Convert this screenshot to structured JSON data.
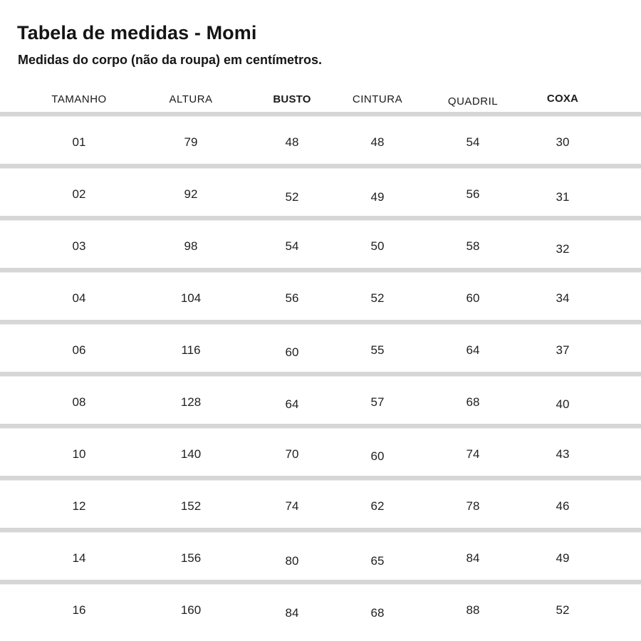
{
  "page": {
    "title": "Tabela de medidas - Momi",
    "subtitle": "Medidas do corpo (não da roupa) em centímetros."
  },
  "table": {
    "columns": [
      "TAMANHO",
      "ALTURA",
      "BUSTO",
      "CINTURA",
      "QUADRIL",
      "COXA"
    ],
    "rows": [
      [
        "01",
        "79",
        "48",
        "48",
        "54",
        "30"
      ],
      [
        "02",
        "92",
        "52",
        "49",
        "56",
        "31"
      ],
      [
        "03",
        "98",
        "54",
        "50",
        "58",
        "32"
      ],
      [
        "04",
        "104",
        "56",
        "52",
        "60",
        "34"
      ],
      [
        "06",
        "116",
        "60",
        "55",
        "64",
        "37"
      ],
      [
        "08",
        "128",
        "64",
        "57",
        "68",
        "40"
      ],
      [
        "10",
        "140",
        "70",
        "60",
        "74",
        "43"
      ],
      [
        "12",
        "152",
        "74",
        "62",
        "78",
        "46"
      ],
      [
        "14",
        "156",
        "80",
        "65",
        "84",
        "49"
      ],
      [
        "16",
        "160",
        "84",
        "68",
        "88",
        "52"
      ]
    ],
    "units": "centímetros"
  },
  "chart_data": {
    "type": "table",
    "title": "Tabela de medidas - Momi",
    "subtitle": "Medidas do corpo (não da roupa) em centímetros.",
    "columns": [
      "TAMANHO",
      "ALTURA",
      "BUSTO",
      "CINTURA",
      "QUADRIL",
      "COXA"
    ],
    "rows": [
      [
        "01",
        "79",
        "48",
        "48",
        "54",
        "30"
      ],
      [
        "02",
        "92",
        "52",
        "49",
        "56",
        "31"
      ],
      [
        "03",
        "98",
        "54",
        "50",
        "58",
        "32"
      ],
      [
        "04",
        "104",
        "56",
        "52",
        "60",
        "34"
      ],
      [
        "06",
        "116",
        "60",
        "55",
        "64",
        "37"
      ],
      [
        "08",
        "128",
        "64",
        "57",
        "68",
        "40"
      ],
      [
        "10",
        "140",
        "70",
        "60",
        "74",
        "43"
      ],
      [
        "12",
        "152",
        "74",
        "62",
        "78",
        "46"
      ],
      [
        "14",
        "156",
        "80",
        "65",
        "84",
        "49"
      ],
      [
        "16",
        "160",
        "84",
        "68",
        "88",
        "52"
      ]
    ]
  },
  "colors": {
    "separator": "#d6d6d6",
    "text": "#1f1f1f"
  }
}
